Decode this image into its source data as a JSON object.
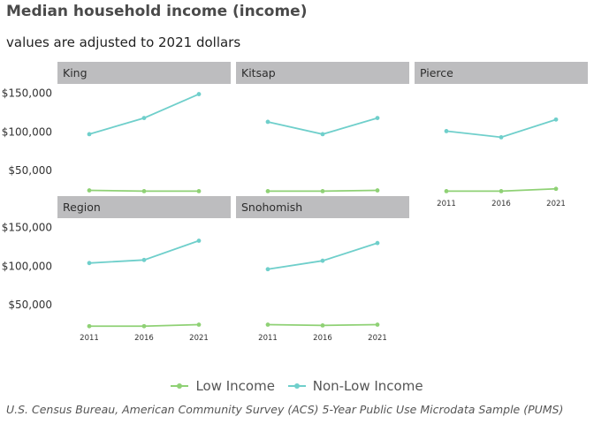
{
  "title": "Median household income (income)",
  "subtitle": "values are adjusted to 2021 dollars",
  "caption": "U.S. Census Bureau, American Community Survey (ACS) 5-Year Public Use Microdata Sample (PUMS)",
  "colors": {
    "low_income": "#8fd175",
    "non_low_income": "#6fcfcb",
    "strip": "#bdbdbf"
  },
  "chart_data": {
    "type": "line",
    "x": [
      2011,
      2016,
      2021
    ],
    "x_tick_labels": [
      "2011",
      "2016",
      "2021"
    ],
    "y_tick_labels": [
      "$150,000",
      "$100,000",
      "$50,000"
    ],
    "y_ticks": [
      150000,
      100000,
      50000
    ],
    "ylim": [
      20000,
      160000
    ],
    "legend_position": "bottom",
    "series_names": [
      "Low Income",
      "Non-Low Income"
    ],
    "facets": [
      {
        "panel": "King",
        "series": [
          {
            "name": "Low Income",
            "values": [
              24000,
              23000,
              23000
            ]
          },
          {
            "name": "Non-Low Income",
            "values": [
              97000,
              118000,
              149000
            ]
          }
        ]
      },
      {
        "panel": "Kitsap",
        "series": [
          {
            "name": "Low Income",
            "values": [
              23000,
              23000,
              24000
            ]
          },
          {
            "name": "Non-Low Income",
            "values": [
              113000,
              97000,
              118000
            ]
          }
        ]
      },
      {
        "panel": "Pierce",
        "series": [
          {
            "name": "Low Income",
            "values": [
              23000,
              23000,
              26000
            ]
          },
          {
            "name": "Non-Low Income",
            "values": [
              101000,
              93000,
              116000
            ]
          }
        ]
      },
      {
        "panel": "Region",
        "series": [
          {
            "name": "Low Income",
            "values": [
              22000,
              22000,
              24000
            ]
          },
          {
            "name": "Non-Low Income",
            "values": [
              104000,
              108000,
              133000
            ]
          }
        ]
      },
      {
        "panel": "Snohomish",
        "series": [
          {
            "name": "Low Income",
            "values": [
              24000,
              23000,
              24000
            ]
          },
          {
            "name": "Non-Low Income",
            "values": [
              96000,
              107000,
              130000
            ]
          }
        ]
      }
    ]
  }
}
